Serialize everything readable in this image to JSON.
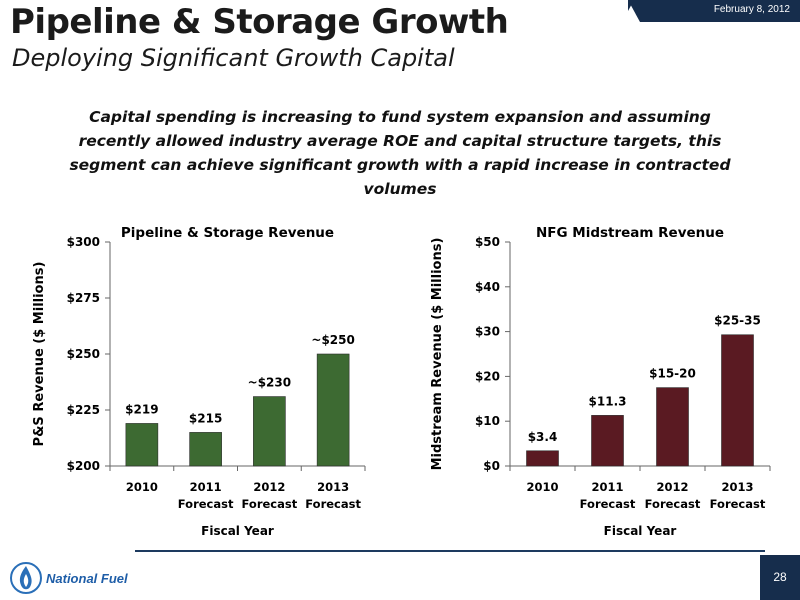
{
  "header": {
    "title": "Pipeline & Storage Growth",
    "subtitle": "Deploying Significant Growth Capital",
    "date": "February 8, 2012"
  },
  "summary": "Capital spending is increasing to fund system expansion and assuming recently allowed industry average ROE and capital structure targets, this segment can achieve significant growth with a rapid increase in contracted volumes",
  "footer": {
    "logo_text": "National Fuel",
    "page_number": "28"
  },
  "colors": {
    "ps_bar": "#3d6a32",
    "midstream_bar": "#5a1a22",
    "title_bar": "#162d4c"
  },
  "chart_data": [
    {
      "type": "bar",
      "title": "Pipeline & Storage Revenue",
      "xlabel": "Fiscal Year",
      "ylabel": "P&S Revenue ($ Millions)",
      "categories": [
        [
          "2010"
        ],
        [
          "2011",
          "Forecast"
        ],
        [
          "2012",
          "Forecast"
        ],
        [
          "2013",
          "Forecast"
        ]
      ],
      "values": [
        219,
        215,
        231,
        250
      ],
      "data_labels": [
        "$219",
        "$215",
        "~$230",
        "~$250"
      ],
      "ylim": [
        200,
        300
      ],
      "yticks": [
        200,
        225,
        250,
        275,
        300
      ],
      "ytick_labels": [
        "$200",
        "$225",
        "$250",
        "$275",
        "$300"
      ],
      "grid": false
    },
    {
      "type": "bar",
      "title": "NFG Midstream Revenue",
      "xlabel": "Fiscal Year",
      "ylabel": "Midstream  Revenue ($ Millions)",
      "categories": [
        [
          "2010"
        ],
        [
          "2011",
          "Forecast"
        ],
        [
          "2012",
          "Forecast"
        ],
        [
          "2013",
          "Forecast"
        ]
      ],
      "values": [
        3.4,
        11.3,
        17.5,
        29.3
      ],
      "data_labels": [
        "$3.4",
        "$11.3",
        "$15-20",
        "$25-35"
      ],
      "ylim": [
        0,
        50
      ],
      "yticks": [
        0,
        10,
        20,
        30,
        40,
        50
      ],
      "ytick_labels": [
        "$0",
        "$10",
        "$20",
        "$30",
        "$40",
        "$50"
      ],
      "grid": false
    }
  ]
}
